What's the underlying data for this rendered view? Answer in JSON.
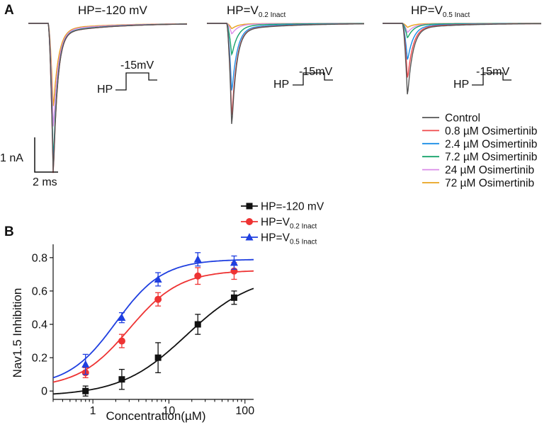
{
  "panel_a": {
    "letter": "A",
    "columns": [
      {
        "title_main": "HP=-120 mV",
        "title_sub": "",
        "protocol_hp": "HP",
        "protocol_step": "-15mV",
        "traces": [
          {
            "name": "Control",
            "peak": -1.02
          },
          {
            "name": "0.8 µM Osimertinib",
            "peak": -1.03
          },
          {
            "name": "2.4 µM Osimertinib",
            "peak": -0.98
          },
          {
            "name": "7.2 µM Osimertinib",
            "peak": -0.93
          },
          {
            "name": "24 µM Osimertinib",
            "peak": -0.71
          },
          {
            "name": "72 µM Osimertinib",
            "peak": -0.57
          }
        ]
      },
      {
        "title_main": "HP=V",
        "title_sub": "0.2 Inact",
        "protocol_hp": "HP",
        "protocol_step": "-15mV",
        "traces": [
          {
            "name": "Control",
            "peak": -0.78
          },
          {
            "name": "0.8 µM Osimertinib",
            "peak": -0.71
          },
          {
            "name": "2.4 µM Osimertinib",
            "peak": -0.52
          },
          {
            "name": "7.2 µM Osimertinib",
            "peak": -0.24
          },
          {
            "name": "24 µM Osimertinib",
            "peak": -0.08
          },
          {
            "name": "72 µM Osimertinib",
            "peak": -0.04
          }
        ]
      },
      {
        "title_main": "HP=V",
        "title_sub": "0.5 Inact",
        "protocol_hp": "HP",
        "protocol_step": "-15mV",
        "traces": [
          {
            "name": "Control",
            "peak": -0.55
          },
          {
            "name": "0.8 µM Osimertinib",
            "peak": -0.42
          },
          {
            "name": "2.4 µM Osimertinib",
            "peak": -0.28
          },
          {
            "name": "7.2 µM Osimertinib",
            "peak": -0.11
          },
          {
            "name": "24 µM Osimertinib",
            "peak": -0.07
          },
          {
            "name": "72 µM Osimertinib",
            "peak": -0.03
          }
        ]
      }
    ],
    "scale_bar": {
      "current_label": "1 nA",
      "time_label": "2 ms"
    },
    "legend": [
      {
        "label": "Control",
        "color": "#555555"
      },
      {
        "label": "0.8 µM Osimertinib",
        "color": "#f0484b"
      },
      {
        "label": "2.4 µM Osimertinib",
        "color": "#1a8ee6"
      },
      {
        "label": "7.2 µM Osimertinib",
        "color": "#17a36b"
      },
      {
        "label": "24 µM Osimertinib",
        "color": "#d98be8"
      },
      {
        "label": "72 µM Osimertinib",
        "color": "#e8a31b"
      }
    ]
  },
  "panel_b": {
    "letter": "B"
  },
  "chart_data": {
    "type": "scatter",
    "title": "",
    "xlabel": "Concentration(µM)",
    "ylabel": "Nav1.5 Inhibition",
    "xscale": "log",
    "xlim": [
      0.3,
      130
    ],
    "ylim": [
      -0.05,
      0.88
    ],
    "xticks": [
      1,
      10,
      100
    ],
    "yticks": [
      0,
      0.2,
      0.4,
      0.6,
      0.8
    ],
    "series": [
      {
        "name_main": "HP=-120 mV",
        "name_sub": "",
        "color": "#111111",
        "marker": "square",
        "x": [
          0.8,
          2.4,
          7.2,
          24,
          72
        ],
        "y": [
          0.0,
          0.07,
          0.2,
          0.4,
          0.56
        ],
        "err": [
          0.03,
          0.06,
          0.09,
          0.06,
          0.04
        ],
        "fit": {
          "top": 0.7,
          "ic50": 17,
          "hill": 1.0,
          "bottom": -0.03
        }
      },
      {
        "name_main": "HP=V",
        "name_sub": "0.2 Inact",
        "color": "#ee3333",
        "marker": "circle",
        "x": [
          0.8,
          2.4,
          7.2,
          24,
          72
        ],
        "y": [
          0.11,
          0.3,
          0.55,
          0.69,
          0.72
        ],
        "err": [
          0.03,
          0.04,
          0.04,
          0.05,
          0.05
        ],
        "fit": {
          "top": 0.725,
          "ic50": 3.0,
          "hill": 1.3,
          "bottom": 0.02
        }
      },
      {
        "name_main": "HP=V",
        "name_sub": "0.5 Inact",
        "color": "#1f3fe0",
        "marker": "triangle",
        "x": [
          0.8,
          2.4,
          7.2,
          24,
          72
        ],
        "y": [
          0.16,
          0.44,
          0.67,
          0.79,
          0.77
        ],
        "err": [
          0.06,
          0.03,
          0.04,
          0.04,
          0.04
        ],
        "fit": {
          "top": 0.79,
          "ic50": 2.0,
          "hill": 1.4,
          "bottom": 0.03
        }
      }
    ]
  }
}
